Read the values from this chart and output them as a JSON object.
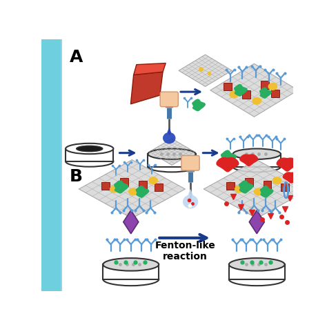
{
  "bg_left_color": "#6ecfdf",
  "label_A": "A",
  "label_B": "B",
  "arrow_color": "#1a3a8a",
  "red_block_color": "#c0392b",
  "antibody_color": "#5b9bd5",
  "green_blob_color": "#27ae60",
  "yellow_dot_color": "#f0c030",
  "purple_diamond_color": "#8e44ad",
  "red_debris_color": "#e74c3c",
  "fenton_text": "Fenton-like\nreaction",
  "fenton_fontsize": 10
}
